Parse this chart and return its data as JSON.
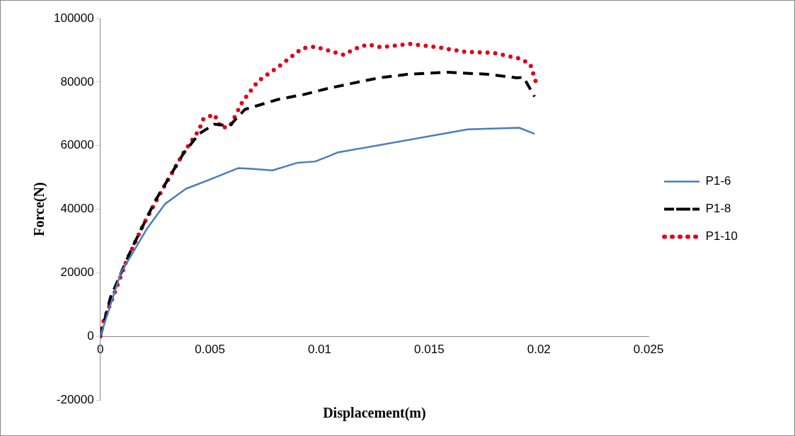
{
  "chart_data": {
    "type": "line",
    "xlabel": "Displacement(m)",
    "ylabel": "Force(N)",
    "xlim": [
      0,
      0.025
    ],
    "xticks": [
      0,
      0.005,
      0.01,
      0.015,
      0.02,
      0.025
    ],
    "ylim": [
      -20000,
      100000
    ],
    "yticks": [
      -20000,
      0,
      20000,
      40000,
      60000,
      80000,
      100000
    ],
    "grid": false,
    "legend": "right",
    "marker": "none",
    "series": [
      {
        "name": "P1-6",
        "color": "#4a7ebb",
        "line_style": "solid",
        "x": [
          0,
          0.00093,
          0.00214,
          0.00296,
          0.0039,
          0.0051,
          0.00628,
          0.0069,
          0.00785,
          0.009,
          0.0098,
          0.0105,
          0.0108,
          0.01676,
          0.0191,
          0.0198
        ],
        "values": [
          0,
          19900,
          34000,
          41700,
          46400,
          49600,
          52900,
          52700,
          52200,
          54600,
          55000,
          56900,
          57800,
          65100,
          65600,
          63700
        ]
      },
      {
        "name": "P1-8",
        "color": "#000000",
        "line_style": "dashed",
        "x": [
          0,
          0.00046,
          0.00143,
          0.0025,
          0.00378,
          0.0045,
          0.0052,
          0.0059,
          0.0066,
          0.0081,
          0.0093,
          0.0104,
          0.0115,
          0.0127,
          0.014,
          0.0158,
          0.0177,
          0.019,
          0.0193,
          0.0198
        ],
        "values": [
          0,
          12200,
          27600,
          42600,
          57400,
          63700,
          66700,
          66300,
          71400,
          74500,
          76100,
          78000,
          79600,
          81300,
          82400,
          83100,
          82400,
          81300,
          81500,
          75400
        ]
      },
      {
        "name": "P1-10",
        "color": "#e0001b",
        "line_style": "dotted",
        "x": [
          0,
          0.0001,
          0.00054,
          0.0012,
          0.00196,
          0.00285,
          0.0038,
          0.0045,
          0.0047,
          0.0052,
          0.0055,
          0.0059,
          0.0062,
          0.0065,
          0.0072,
          0.0082,
          0.0092,
          0.0098,
          0.0111,
          0.0116,
          0.0122,
          0.0128,
          0.0141,
          0.0154,
          0.0166,
          0.0179,
          0.0191,
          0.0196,
          0.0199
        ],
        "values": [
          0,
          4000,
          11700,
          23900,
          35100,
          46400,
          57800,
          64900,
          68400,
          69800,
          65600,
          66000,
          70000,
          74000,
          80300,
          85200,
          90600,
          91100,
          88500,
          90400,
          91800,
          90900,
          92000,
          90900,
          89500,
          89200,
          87400,
          85700,
          79200
        ]
      }
    ]
  }
}
